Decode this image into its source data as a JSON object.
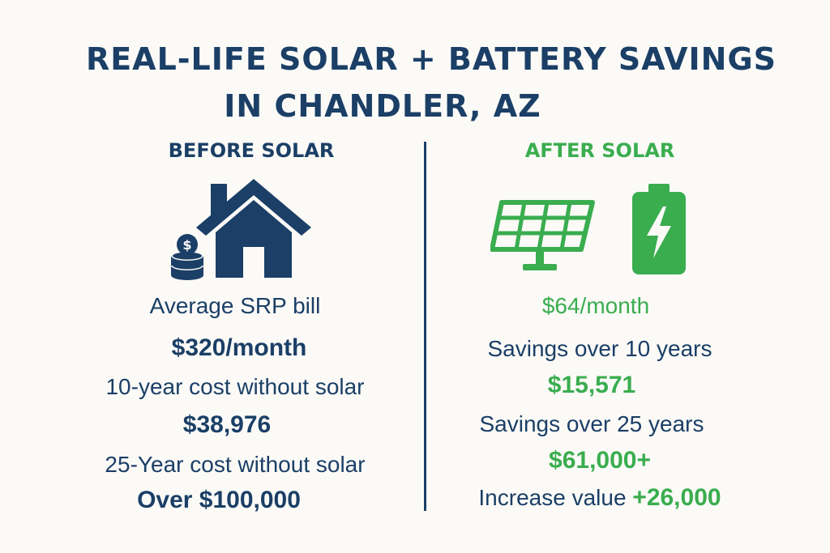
{
  "title": {
    "line1": "REAL-LIFE SOLAR + BATTERY SAVINGS",
    "line2": "IN CHANDLER, AZ"
  },
  "before": {
    "heading": "BEFORE SOLAR",
    "icons": [
      "house-icon",
      "coins-dollar-icon"
    ],
    "bill_label": "Average SRP bill",
    "bill_value": "$320/month",
    "ten_year_label": "10-year cost without solar",
    "ten_year_value": "$38,976",
    "twentyfive_label": "25-Year cost without solar",
    "twentyfive_value": "Over $100,000"
  },
  "after": {
    "heading": "AFTER SOLAR",
    "icons": [
      "solar-panel-icon",
      "battery-bolt-icon"
    ],
    "bill_value": "$64/month",
    "ten_year_label": "Savings over 10 years",
    "ten_year_value": "$15,571",
    "twentyfive_label": "Savings over 25 years",
    "twentyfive_value": "$61,000+",
    "value_label": "Increase value",
    "value_amount": "+26,000"
  },
  "colors": {
    "navy": "#1b3f66",
    "green": "#3aad4f",
    "background": "#fbfaf7"
  }
}
